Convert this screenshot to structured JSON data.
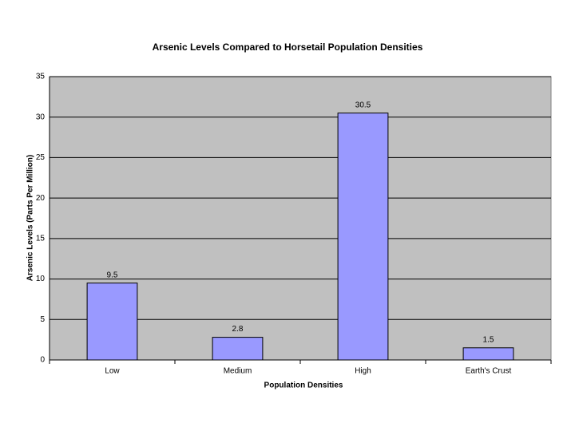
{
  "chart_data": {
    "type": "bar",
    "title": "Arsenic Levels Compared to Horsetail Population Densities",
    "x_label": "Population Densities",
    "y_label": "Arsenic Levels (Parts Per Million)",
    "categories": [
      "Low",
      "Medium",
      "High",
      "Earth's Crust"
    ],
    "values": [
      9.5,
      2.8,
      30.5,
      1.5
    ],
    "color": "#9999ff",
    "ylim": [
      0,
      35
    ],
    "yticks": [
      0,
      5,
      10,
      15,
      20,
      25,
      30,
      35
    ],
    "grid": true
  }
}
